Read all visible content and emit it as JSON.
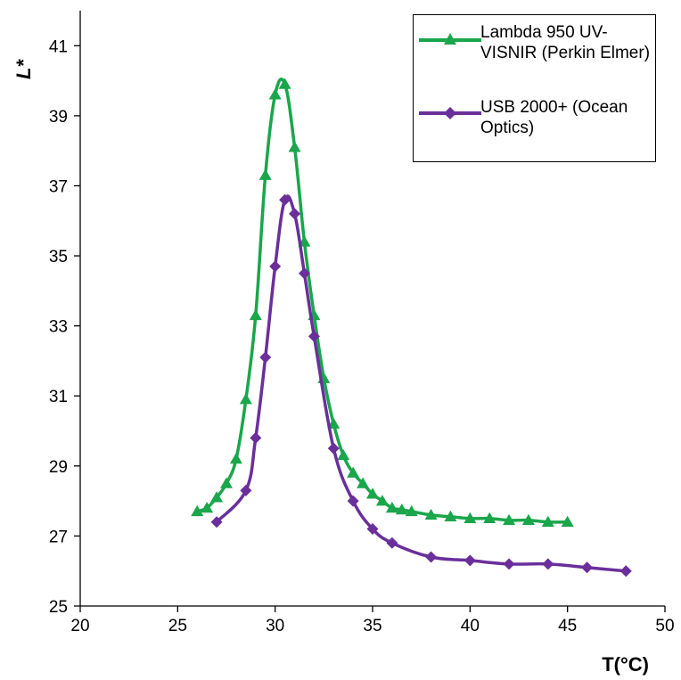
{
  "chart_data": {
    "type": "line",
    "title": "",
    "xlabel": "T(°C)",
    "ylabel": "L*",
    "xlim": [
      20,
      50
    ],
    "ylim": [
      25,
      42
    ],
    "x_ticks": [
      "20",
      "25",
      "30",
      "35",
      "40",
      "45",
      "50"
    ],
    "y_ticks": [
      "25",
      "27",
      "29",
      "31",
      "33",
      "35",
      "37",
      "39",
      "41"
    ],
    "grid": false,
    "legend_position": "top-right",
    "series": [
      {
        "name": "Lambda 950 UV-VISNIR (Perkin Elmer)",
        "color": "#1aa64b",
        "marker": "triangle",
        "x": [
          26,
          26.5,
          27,
          27.5,
          28,
          28.5,
          29,
          29.5,
          30,
          30.5,
          31,
          31.5,
          32,
          32.5,
          33,
          33.5,
          34,
          34.5,
          35,
          35.5,
          36,
          36.5,
          37,
          38,
          39,
          40,
          41,
          42,
          43,
          44,
          45
        ],
        "y": [
          27.7,
          27.8,
          28.1,
          28.5,
          29.2,
          30.9,
          33.3,
          37.3,
          39.6,
          39.9,
          38.1,
          35.4,
          33.3,
          31.5,
          30.2,
          29.3,
          28.8,
          28.5,
          28.2,
          28.0,
          27.8,
          27.75,
          27.7,
          27.6,
          27.55,
          27.5,
          27.5,
          27.45,
          27.45,
          27.4,
          27.4
        ]
      },
      {
        "name": "USB 2000+ (Ocean Optics)",
        "color": "#6a2f9b",
        "marker": "diamond",
        "x": [
          27,
          28.5,
          29,
          29.5,
          30,
          30.5,
          31,
          31.5,
          32,
          33,
          34,
          35,
          36,
          38,
          40,
          42,
          44,
          46,
          48
        ],
        "y": [
          27.4,
          28.3,
          29.8,
          32.1,
          34.7,
          36.6,
          36.2,
          34.5,
          32.7,
          29.5,
          28.0,
          27.2,
          26.8,
          26.4,
          26.3,
          26.2,
          26.2,
          26.1,
          26.0
        ]
      }
    ]
  },
  "legend": {
    "items": [
      {
        "label": "Lambda 950 UV-VISNIR (Perkin Elmer)"
      },
      {
        "label": "USB 2000+ (Ocean Optics)"
      }
    ]
  }
}
